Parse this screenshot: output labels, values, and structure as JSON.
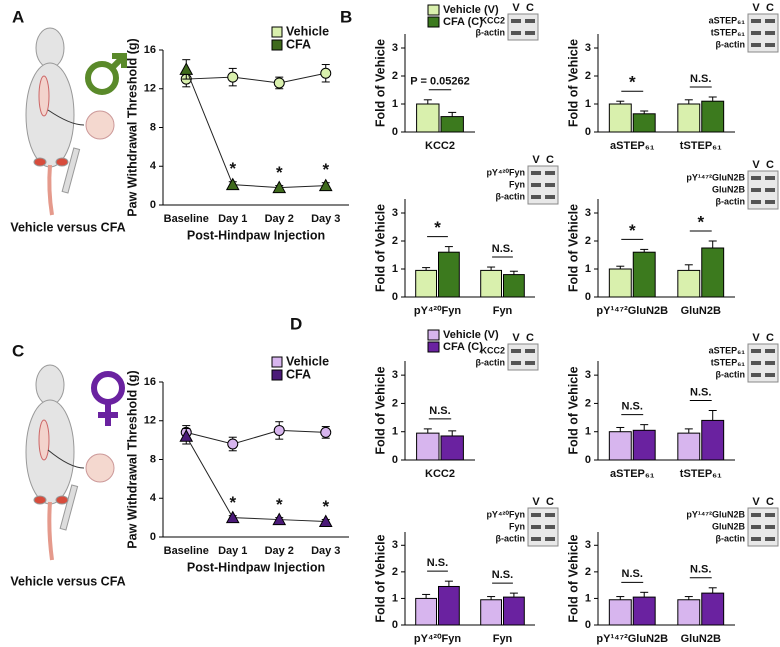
{
  "figure": {
    "panels": [
      "A",
      "B",
      "C",
      "D"
    ],
    "captions": [
      "Vehicle versus CFA",
      "Vehicle versus CFA"
    ]
  },
  "chart_data": [
    {
      "type": "line",
      "ylabel": "Paw Withdrawal Threshold (g)",
      "xlabel": "Post-Hindpaw Injection",
      "categories": [
        "Baseline",
        "Day 1",
        "Day 2",
        "Day 3"
      ],
      "ylim": [
        0,
        16
      ],
      "yticks": [
        0,
        4,
        8,
        12,
        16
      ],
      "series": [
        {
          "name": "Vehicle",
          "color": "#d9f0ad",
          "marker": "circle",
          "values": [
            13,
            13.2,
            12.6,
            13.6
          ],
          "errors": [
            0.8,
            0.9,
            0.6,
            0.9
          ]
        },
        {
          "name": "CFA",
          "color": "#3f6a1c",
          "marker": "triangle",
          "values": [
            14,
            2.1,
            1.8,
            2.0
          ],
          "errors": [
            1.0,
            0.3,
            0.2,
            0.3
          ]
        }
      ],
      "significance": [
        null,
        "*",
        "*",
        "*"
      ]
    },
    {
      "type": "bar",
      "ylabel": "Fold of Vehicle",
      "categories": [
        "KCC2"
      ],
      "ylim": [
        0,
        3.5
      ],
      "yticks": [
        0,
        1,
        2,
        3
      ],
      "series": [
        {
          "name": "Vehicle (V)",
          "color": "#d9f0ad",
          "values": [
            1.0
          ],
          "errors": [
            0.15
          ]
        },
        {
          "name": "CFA (C)",
          "color": "#3c7a1e",
          "values": [
            0.55
          ],
          "errors": [
            0.15
          ]
        }
      ],
      "significance": [
        "P = 0.05262"
      ],
      "blot": {
        "lanes": [
          "V",
          "C"
        ],
        "labels": [
          "KCC2",
          "β-actin"
        ]
      }
    },
    {
      "type": "bar",
      "ylabel": "Fold of Vehicle",
      "categories": [
        "aSTEP₆₁",
        "tSTEP₆₁"
      ],
      "ylim": [
        0,
        3.5
      ],
      "yticks": [
        0,
        1,
        2,
        3
      ],
      "series": [
        {
          "color": "#d9f0ad",
          "values": [
            1.0,
            1.0
          ],
          "errors": [
            0.1,
            0.15
          ]
        },
        {
          "color": "#3c7a1e",
          "values": [
            0.65,
            1.1
          ],
          "errors": [
            0.1,
            0.15
          ]
        }
      ],
      "significance": [
        "*",
        "N.S."
      ],
      "blot": {
        "lanes": [
          "V",
          "C"
        ],
        "labels": [
          "aSTEP₆₁",
          "tSTEP₆₁",
          "β-actin"
        ]
      }
    },
    {
      "type": "bar",
      "ylabel": "Fold of Vehicle",
      "categories": [
        "pY⁴²⁰Fyn",
        "Fyn"
      ],
      "ylim": [
        0,
        3.5
      ],
      "yticks": [
        0,
        1,
        2,
        3
      ],
      "series": [
        {
          "color": "#d9f0ad",
          "values": [
            0.95,
            0.95
          ],
          "errors": [
            0.1,
            0.12
          ]
        },
        {
          "color": "#3c7a1e",
          "values": [
            1.6,
            0.8
          ],
          "errors": [
            0.2,
            0.12
          ]
        }
      ],
      "significance": [
        "*",
        "N.S."
      ],
      "blot": {
        "lanes": [
          "V",
          "C"
        ],
        "labels": [
          "pY⁴²⁰Fyn",
          "Fyn",
          "β-actin"
        ]
      }
    },
    {
      "type": "bar",
      "ylabel": "Fold of Vehicle",
      "categories": [
        "pY¹⁴⁷²GluN2B",
        "GluN2B"
      ],
      "ylim": [
        0,
        3.5
      ],
      "yticks": [
        0,
        1,
        2,
        3
      ],
      "series": [
        {
          "color": "#d9f0ad",
          "values": [
            1.0,
            0.95
          ],
          "errors": [
            0.1,
            0.2
          ]
        },
        {
          "color": "#3c7a1e",
          "values": [
            1.6,
            1.75
          ],
          "errors": [
            0.1,
            0.25
          ]
        }
      ],
      "significance": [
        "*",
        "*"
      ],
      "blot": {
        "lanes": [
          "V",
          "C"
        ],
        "labels": [
          "pY¹⁴⁷²GluN2B",
          "GluN2B",
          "β-actin"
        ]
      }
    },
    {
      "type": "line",
      "ylabel": "Paw Withdrawal Threshold (g)",
      "xlabel": "Post-Hindpaw Injection",
      "categories": [
        "Baseline",
        "Day 1",
        "Day 2",
        "Day 3"
      ],
      "ylim": [
        0,
        16
      ],
      "yticks": [
        0,
        4,
        8,
        12,
        16
      ],
      "series": [
        {
          "name": "Vehicle",
          "color": "#d7b5ee",
          "marker": "circle",
          "values": [
            10.8,
            9.6,
            11.0,
            10.8
          ],
          "errors": [
            0.7,
            0.7,
            0.9,
            0.6
          ]
        },
        {
          "name": "CFA",
          "color": "#4b1a78",
          "marker": "triangle",
          "values": [
            10.4,
            2.0,
            1.8,
            1.6
          ],
          "errors": [
            0.8,
            0.2,
            0.2,
            0.2
          ]
        }
      ],
      "significance": [
        null,
        "*",
        "*",
        "*"
      ]
    },
    {
      "type": "bar",
      "ylabel": "Fold of Vehicle",
      "categories": [
        "KCC2"
      ],
      "ylim": [
        0,
        3.5
      ],
      "yticks": [
        0,
        1,
        2,
        3
      ],
      "series": [
        {
          "name": "Vehicle (V)",
          "color": "#d7b5ee",
          "values": [
            0.95
          ],
          "errors": [
            0.15
          ]
        },
        {
          "name": "CFA (C)",
          "color": "#6a22a0",
          "values": [
            0.85
          ],
          "errors": [
            0.18
          ]
        }
      ],
      "significance": [
        "N.S."
      ],
      "blot": {
        "lanes": [
          "V",
          "C"
        ],
        "labels": [
          "KCC2",
          "β-actin"
        ]
      }
    },
    {
      "type": "bar",
      "ylabel": "Fold of Vehicle",
      "categories": [
        "aSTEP₆₁",
        "tSTEP₆₁"
      ],
      "ylim": [
        0,
        3.5
      ],
      "yticks": [
        0,
        1,
        2,
        3
      ],
      "series": [
        {
          "color": "#d7b5ee",
          "values": [
            1.0,
            0.95
          ],
          "errors": [
            0.15,
            0.15
          ]
        },
        {
          "color": "#6a22a0",
          "values": [
            1.05,
            1.4
          ],
          "errors": [
            0.2,
            0.35
          ]
        }
      ],
      "significance": [
        "N.S.",
        "N.S."
      ],
      "blot": {
        "lanes": [
          "V",
          "C"
        ],
        "labels": [
          "aSTEP₆₁",
          "tSTEP₆₁",
          "β-actin"
        ]
      }
    },
    {
      "type": "bar",
      "ylabel": "Fold of Vehicle",
      "categories": [
        "pY⁴²⁰Fyn",
        "Fyn"
      ],
      "ylim": [
        0,
        3.5
      ],
      "yticks": [
        0,
        1,
        2,
        3
      ],
      "series": [
        {
          "color": "#d7b5ee",
          "values": [
            1.0,
            0.95
          ],
          "errors": [
            0.15,
            0.12
          ]
        },
        {
          "color": "#6a22a0",
          "values": [
            1.45,
            1.05
          ],
          "errors": [
            0.2,
            0.15
          ]
        }
      ],
      "significance": [
        "N.S.",
        "N.S."
      ],
      "blot": {
        "lanes": [
          "V",
          "C"
        ],
        "labels": [
          "pY⁴²⁰Fyn",
          "Fyn",
          "β-actin"
        ]
      }
    },
    {
      "type": "bar",
      "ylabel": "Fold of Vehicle",
      "categories": [
        "pY¹⁴⁷²GluN2B",
        "GluN2B"
      ],
      "ylim": [
        0,
        3.5
      ],
      "yticks": [
        0,
        1,
        2,
        3
      ],
      "series": [
        {
          "color": "#d7b5ee",
          "values": [
            0.95,
            0.95
          ],
          "errors": [
            0.12,
            0.12
          ]
        },
        {
          "color": "#6a22a0",
          "values": [
            1.05,
            1.2
          ],
          "errors": [
            0.18,
            0.2
          ]
        }
      ],
      "significance": [
        "N.S.",
        "N.S."
      ],
      "blot": {
        "lanes": [
          "V",
          "C"
        ],
        "labels": [
          "pY¹⁴⁷²GluN2B",
          "GluN2B",
          "β-actin"
        ]
      }
    }
  ]
}
